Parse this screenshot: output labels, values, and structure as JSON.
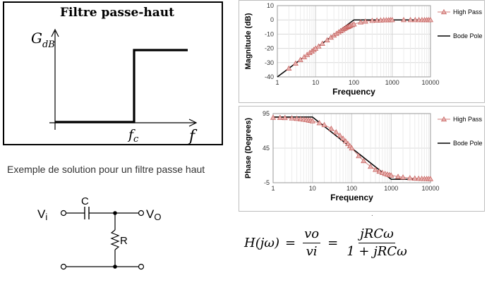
{
  "ideal": {
    "title": "Filtre passe-haut",
    "y_label_main": "G",
    "y_label_sub": "dB",
    "fc_main": "f",
    "fc_sub": "c",
    "x_label": "f"
  },
  "caption": "Exemple de solution pour un filtre passe haut",
  "circuit": {
    "vi_main": "V",
    "vi_sub": "i",
    "vo_main": "V",
    "vo_sub": "O",
    "c_label": "C",
    "r_label": "R"
  },
  "formula": {
    "lhs": "H(jω)",
    "eq": "=",
    "f1_num": "vo",
    "f1_den": "vi",
    "f2_num": "jRCω",
    "f2_den": "1 + jRCω"
  },
  "chart_data": [
    {
      "type": "line",
      "xscale": "log",
      "xlabel": "Frequency",
      "ylabel": "Magnitude (dB)",
      "xticks": [
        "1",
        "10",
        "100",
        "1000",
        "10000"
      ],
      "yticks": [
        "10",
        "0",
        "-10",
        "-20",
        "-30",
        "-40"
      ],
      "ylim": [
        -40,
        10
      ],
      "xlim": [
        1,
        10000
      ],
      "grid": true,
      "legend_position": "right",
      "series": [
        {
          "name": "High Pass",
          "color": "#c0504d",
          "marker": "triangle",
          "x": [
            2,
            3,
            4,
            5,
            6,
            7,
            8,
            9,
            10,
            12,
            15,
            20,
            25,
            30,
            35,
            40,
            45,
            50,
            55,
            60,
            65,
            70,
            75,
            80,
            90,
            100,
            150,
            200,
            300,
            400,
            500,
            600,
            700,
            800,
            900,
            1000,
            2000,
            3000,
            4000,
            5000,
            6000,
            7000,
            8000,
            9000,
            10000
          ],
          "y": [
            -34,
            -30.5,
            -28,
            -26,
            -24.4,
            -23.1,
            -22,
            -20.9,
            -20,
            -18.5,
            -16.6,
            -14.2,
            -12.3,
            -10.8,
            -9.6,
            -8.6,
            -7.7,
            -7,
            -6.3,
            -5.7,
            -5.2,
            -4.8,
            -4.4,
            -4,
            -3.5,
            -3,
            -1.6,
            -1,
            -0.5,
            -0.3,
            -0.2,
            -0.1,
            -0.1,
            -0.1,
            0,
            0,
            0,
            0,
            0,
            0,
            0,
            0,
            0,
            0,
            0
          ]
        },
        {
          "name": "Bode Pole",
          "color": "#000000",
          "x": [
            1,
            100,
            10000
          ],
          "y": [
            -40,
            0,
            0
          ]
        }
      ]
    },
    {
      "type": "line",
      "xscale": "log",
      "xlabel": "Frequency",
      "ylabel": "Phase (Degrees)",
      "xticks": [
        "1",
        "10",
        "100",
        "1000",
        "10000"
      ],
      "yticks": [
        "95",
        "45",
        "-5"
      ],
      "ylim": [
        -5,
        95
      ],
      "xlim": [
        1,
        10000
      ],
      "grid": true,
      "legend_position": "right",
      "series": [
        {
          "name": "High Pass",
          "color": "#c0504d",
          "marker": "triangle",
          "x": [
            1,
            1.5,
            2,
            3,
            4,
            5,
            6,
            7,
            8,
            9,
            10,
            15,
            20,
            30,
            40,
            50,
            60,
            70,
            80,
            90,
            100,
            150,
            200,
            300,
            400,
            500,
            600,
            700,
            800,
            900,
            1000,
            1500,
            2000,
            3000,
            4000,
            5000,
            6000,
            7000,
            8000,
            9000,
            10000
          ],
          "y": [
            89.4,
            89.1,
            88.9,
            88.3,
            87.7,
            87.1,
            86.6,
            86,
            85.4,
            84.9,
            84.3,
            81.5,
            78.7,
            73.3,
            68.2,
            63.4,
            59,
            55,
            51.3,
            48,
            45,
            33.7,
            26.6,
            18.4,
            14,
            11.3,
            9.5,
            8.1,
            7.1,
            6.3,
            5.7,
            3.8,
            2.9,
            1.9,
            1.4,
            1.1,
            1,
            0.8,
            0.7,
            0.6,
            0.6
          ]
        },
        {
          "name": "Bode Pole",
          "color": "#000000",
          "x": [
            1,
            10,
            1000,
            10000
          ],
          "y": [
            90,
            90,
            0,
            0
          ]
        }
      ]
    }
  ]
}
